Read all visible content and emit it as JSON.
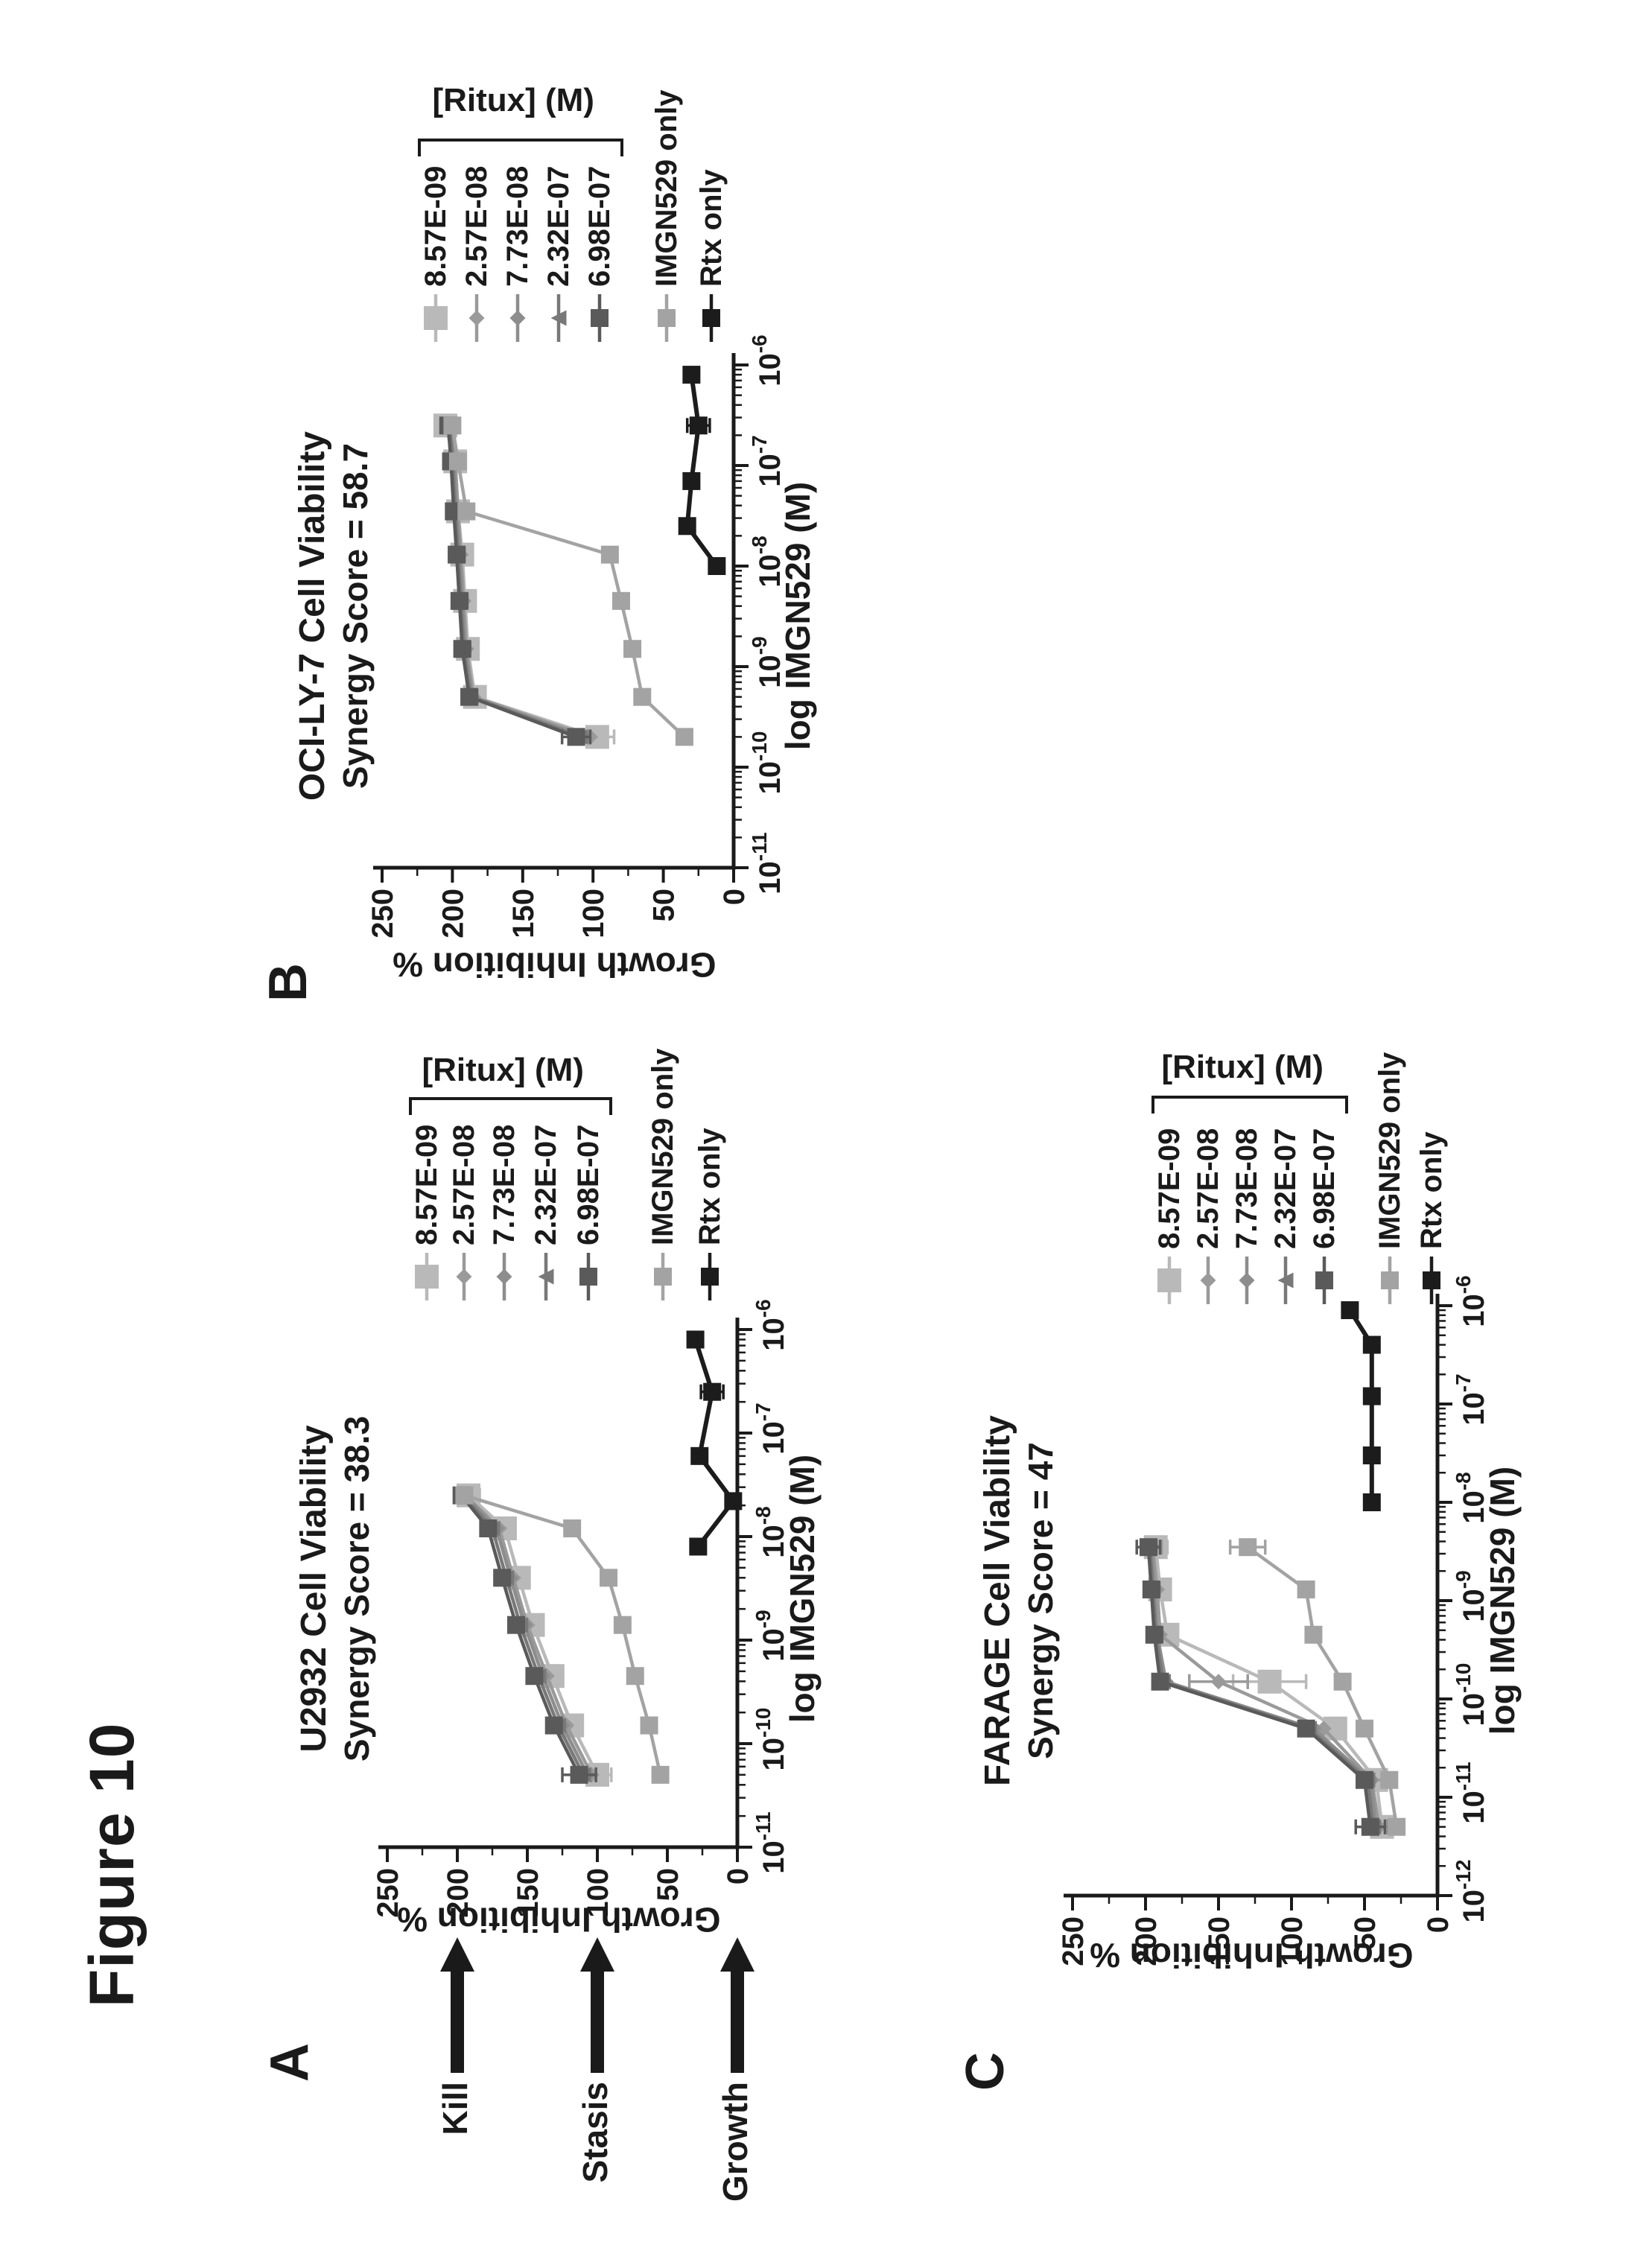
{
  "figure_label": "Figure 10",
  "legend": {
    "header": "[Ritux] (M)",
    "entries": [
      {
        "label": "8.57E-09",
        "marker": "square",
        "size": "large",
        "color": "#b9b9b9"
      },
      {
        "label": "2.57E-08",
        "marker": "diamond",
        "size": "small",
        "color": "#9a9a9a"
      },
      {
        "label": "7.73E-08",
        "marker": "diamond",
        "size": "small",
        "color": "#8d8d8d"
      },
      {
        "label": "2.32E-07",
        "marker": "triangle",
        "size": "small",
        "color": "#787878"
      },
      {
        "label": "6.98E-07",
        "marker": "square",
        "size": "medium",
        "color": "#5a5a5a"
      },
      {
        "label": "IMGN529 only",
        "marker": "square",
        "size": "medium",
        "color": "#a3a3a3"
      },
      {
        "label": "Rtx only",
        "marker": "square",
        "size": "medium",
        "color": "#1c1c1c"
      }
    ]
  },
  "chart_data": [
    {
      "type": "line",
      "panel_letter": "A",
      "title": "U2932 Cell Viability",
      "subtitle": "Synergy Score = 38.3",
      "xlabel": "log IMGN529 (M)",
      "ylabel": "Growth Inhibition %",
      "x_scale": "log",
      "x_tick_exponents": [
        -11,
        -10,
        -9,
        -8,
        -7,
        -6
      ],
      "y_ticks": [
        0,
        50,
        100,
        150,
        200,
        250
      ],
      "ylim": [
        0,
        250
      ],
      "legend_position": "right",
      "annotations": [
        {
          "label": "Kill",
          "y": 200
        },
        {
          "label": "Stasis",
          "y": 100
        },
        {
          "label": "Growth",
          "y": 0
        }
      ],
      "series": [
        {
          "name": "8.57E-09",
          "x": [
            5e-11,
            1.5e-10,
            4.5e-10,
            1.4e-09,
            4e-09,
            1.2e-08,
            2.5e-08
          ],
          "y": [
            100,
            118,
            132,
            146,
            156,
            166,
            192
          ],
          "err": [
            10,
            0,
            0,
            0,
            0,
            0,
            8
          ]
        },
        {
          "name": "2.57E-08",
          "x": [
            5e-11,
            1.5e-10,
            4.5e-10,
            1.4e-09,
            4e-09,
            1.2e-08,
            2.5e-08
          ],
          "y": [
            104,
            122,
            136,
            150,
            160,
            170,
            194
          ],
          "err": [
            0,
            0,
            0,
            0,
            0,
            0,
            0
          ]
        },
        {
          "name": "7.73E-08",
          "x": [
            5e-11,
            1.5e-10,
            4.5e-10,
            1.4e-09,
            4e-09,
            1.2e-08,
            2.5e-08
          ],
          "y": [
            107,
            125,
            139,
            152,
            162,
            172,
            195
          ],
          "err": [
            0,
            0,
            0,
            0,
            0,
            0,
            0
          ]
        },
        {
          "name": "2.32E-07",
          "x": [
            5e-11,
            1.5e-10,
            4.5e-10,
            1.4e-09,
            4e-09,
            1.2e-08,
            2.5e-08
          ],
          "y": [
            110,
            128,
            142,
            155,
            165,
            175,
            196
          ],
          "err": [
            0,
            0,
            0,
            0,
            0,
            0,
            0
          ]
        },
        {
          "name": "6.98E-07",
          "x": [
            5e-11,
            1.5e-10,
            4.5e-10,
            1.4e-09,
            4e-09,
            1.2e-08,
            2.5e-08
          ],
          "y": [
            113,
            131,
            145,
            158,
            168,
            178,
            197
          ],
          "err": [
            12,
            0,
            0,
            0,
            0,
            0,
            0
          ]
        },
        {
          "name": "IMGN529 only",
          "x": [
            5e-11,
            1.5e-10,
            4.5e-10,
            1.4e-09,
            4e-09,
            1.2e-08,
            2.5e-08
          ],
          "y": [
            55,
            63,
            73,
            82,
            92,
            118,
            195
          ],
          "err": [
            0,
            0,
            0,
            0,
            0,
            0,
            0
          ]
        },
        {
          "name": "Rtx only",
          "x": [
            8e-09,
            2.2e-08,
            6e-08,
            2.5e-07,
            8e-07
          ],
          "y": [
            28,
            3,
            27,
            18,
            30
          ],
          "err": [
            0,
            0,
            0,
            8,
            0
          ]
        }
      ]
    },
    {
      "type": "line",
      "panel_letter": "B",
      "title": "OCI-LY-7 Cell Viability",
      "subtitle": "Synergy Score = 58.7",
      "xlabel": "log IMGN529 (M)",
      "ylabel": "Growth Inhibition %",
      "x_scale": "log",
      "x_tick_exponents": [
        -11,
        -10,
        -9,
        -8,
        -7,
        -6
      ],
      "y_ticks": [
        0,
        50,
        100,
        150,
        200,
        250
      ],
      "ylim": [
        0,
        250
      ],
      "legend_position": "right",
      "annotations": [],
      "series": [
        {
          "name": "8.57E-09",
          "x": [
            2e-10,
            5e-10,
            1.5e-09,
            4.5e-09,
            1.3e-08,
            3.5e-08,
            1.1e-07,
            2.5e-07
          ],
          "y": [
            97,
            184,
            189,
            191,
            193,
            196,
            198,
            205
          ],
          "err": [
            12,
            0,
            0,
            0,
            0,
            0,
            0,
            7
          ]
        },
        {
          "name": "2.57E-08",
          "x": [
            2e-10,
            5e-10,
            1.5e-09,
            4.5e-09,
            1.3e-08,
            3.5e-08,
            1.1e-07,
            2.5e-07
          ],
          "y": [
            102,
            185,
            190,
            192,
            194,
            196,
            198,
            200
          ],
          "err": [
            0,
            0,
            0,
            0,
            0,
            0,
            0,
            0
          ]
        },
        {
          "name": "7.73E-08",
          "x": [
            2e-10,
            5e-10,
            1.5e-09,
            4.5e-09,
            1.3e-08,
            3.5e-08,
            1.1e-07,
            2.5e-07
          ],
          "y": [
            106,
            186,
            191,
            193,
            195,
            197,
            199,
            201
          ],
          "err": [
            0,
            0,
            0,
            0,
            0,
            0,
            0,
            0
          ]
        },
        {
          "name": "2.32E-07",
          "x": [
            2e-10,
            5e-10,
            1.5e-09,
            4.5e-09,
            1.3e-08,
            3.5e-08,
            1.1e-07,
            2.5e-07
          ],
          "y": [
            109,
            187,
            192,
            194,
            196,
            198,
            200,
            202
          ],
          "err": [
            0,
            0,
            0,
            0,
            0,
            0,
            0,
            0
          ]
        },
        {
          "name": "6.98E-07",
          "x": [
            2e-10,
            5e-10,
            1.5e-09,
            4.5e-09,
            1.3e-08,
            3.5e-08,
            1.1e-07,
            2.5e-07
          ],
          "y": [
            112,
            188,
            193,
            195,
            197,
            199,
            201,
            203
          ],
          "err": [
            10,
            0,
            0,
            0,
            0,
            0,
            0,
            0
          ]
        },
        {
          "name": "IMGN529 only",
          "x": [
            2e-10,
            5e-10,
            1.5e-09,
            4.5e-09,
            1.3e-08,
            3.5e-08,
            1.1e-07,
            2.5e-07
          ],
          "y": [
            35,
            65,
            72,
            80,
            88,
            190,
            196,
            200
          ],
          "err": [
            0,
            0,
            0,
            0,
            0,
            0,
            0,
            0
          ]
        },
        {
          "name": "Rtx only",
          "x": [
            1e-08,
            2.5e-08,
            7e-08,
            2.5e-07,
            8e-07
          ],
          "y": [
            12,
            33,
            30,
            25,
            30
          ],
          "err": [
            0,
            0,
            0,
            8,
            0
          ]
        }
      ]
    },
    {
      "type": "line",
      "panel_letter": "C",
      "title": "FARAGE Cell Viability",
      "subtitle": "Synergy Score = 47",
      "xlabel": "log IMGN529 (M)",
      "ylabel": "Growth Inhibition %",
      "x_scale": "log",
      "x_tick_exponents": [
        -12,
        -11,
        -10,
        -9,
        -8,
        -7,
        -6
      ],
      "y_ticks": [
        0,
        50,
        100,
        150,
        200,
        250
      ],
      "ylim": [
        0,
        250
      ],
      "legend_position": "right",
      "annotations": [],
      "series": [
        {
          "name": "8.57E-09",
          "x": [
            5e-12,
            1.5e-11,
            5e-11,
            1.5e-10,
            4.5e-10,
            1.3e-09,
            3.5e-09
          ],
          "y": [
            38,
            42,
            70,
            115,
            185,
            190,
            193
          ],
          "err": [
            10,
            8,
            0,
            25,
            0,
            0,
            8
          ]
        },
        {
          "name": "2.57E-08",
          "x": [
            5e-12,
            1.5e-11,
            5e-11,
            1.5e-10,
            4.5e-10,
            1.3e-09,
            3.5e-09
          ],
          "y": [
            40,
            45,
            78,
            150,
            190,
            192,
            195
          ],
          "err": [
            0,
            8,
            0,
            20,
            0,
            0,
            6
          ]
        },
        {
          "name": "7.73E-08",
          "x": [
            5e-12,
            1.5e-11,
            5e-11,
            1.5e-10,
            4.5e-10,
            1.3e-09,
            3.5e-09
          ],
          "y": [
            42,
            46,
            85,
            186,
            192,
            194,
            196
          ],
          "err": [
            8,
            0,
            0,
            0,
            0,
            0,
            6
          ]
        },
        {
          "name": "2.32E-07",
          "x": [
            5e-12,
            1.5e-11,
            5e-11,
            1.5e-10,
            4.5e-10,
            1.3e-09,
            3.5e-09
          ],
          "y": [
            44,
            48,
            88,
            188,
            193,
            195,
            197
          ],
          "err": [
            0,
            0,
            0,
            0,
            0,
            0,
            0
          ]
        },
        {
          "name": "6.98E-07",
          "x": [
            5e-12,
            1.5e-11,
            5e-11,
            1.5e-10,
            4.5e-10,
            1.3e-09,
            3.5e-09
          ],
          "y": [
            46,
            50,
            90,
            190,
            194,
            196,
            198
          ],
          "err": [
            10,
            0,
            0,
            0,
            0,
            0,
            8
          ]
        },
        {
          "name": "IMGN529 only",
          "x": [
            5e-12,
            1.5e-11,
            5e-11,
            1.5e-10,
            4.5e-10,
            1.3e-09,
            3.5e-09
          ],
          "y": [
            28,
            33,
            50,
            65,
            85,
            90,
            130
          ],
          "err": [
            0,
            0,
            0,
            0,
            0,
            0,
            12
          ]
        },
        {
          "name": "Rtx only",
          "x": [
            1e-08,
            3e-08,
            1.2e-07,
            4e-07,
            9e-07
          ],
          "y": [
            45,
            45,
            45,
            45,
            60
          ],
          "err": [
            0,
            0,
            0,
            0,
            0
          ]
        }
      ]
    }
  ]
}
